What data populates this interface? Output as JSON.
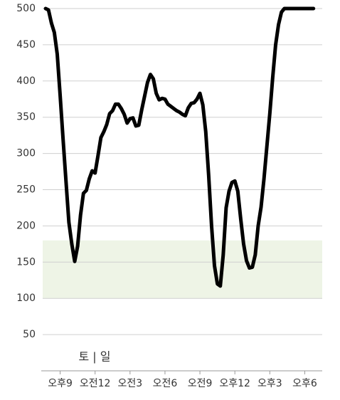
{
  "chart_data": {
    "type": "line",
    "annotation": "토 | 일",
    "x": [
      19.75,
      20,
      20.25,
      20.5,
      20.75,
      21,
      21.25,
      21.5,
      21.75,
      22,
      22.25,
      22.5,
      22.75,
      23,
      23.25,
      23.5,
      23.75,
      24,
      24.25,
      24.5,
      24.75,
      25,
      25.25,
      25.5,
      25.75,
      26,
      26.25,
      26.5,
      26.75,
      27,
      27.25,
      27.5,
      27.75,
      28,
      28.25,
      28.5,
      28.75,
      29,
      29.25,
      29.5,
      29.75,
      30,
      30.25,
      30.5,
      30.75,
      31,
      31.25,
      31.5,
      31.75,
      32,
      32.25,
      32.5,
      32.75,
      33,
      33.25,
      33.5,
      33.75,
      34,
      34.25,
      34.5,
      34.75,
      35,
      35.25,
      35.5,
      35.75,
      36,
      36.25,
      36.5,
      36.75,
      37,
      37.25,
      37.5,
      37.75,
      38,
      38.25,
      38.5,
      38.75,
      39,
      39.25,
      39.5,
      39.75,
      40,
      40.25,
      42.75
    ],
    "series": [
      {
        "color": "#000000",
        "values": [
          500,
          498,
          480,
          467,
          437,
          380,
          320,
          262,
          205,
          175,
          151,
          172,
          215,
          245,
          249,
          265,
          276,
          273,
          297,
          322,
          330,
          340,
          355,
          359,
          368,
          368,
          362,
          354,
          342,
          348,
          349,
          338,
          339,
          360,
          379,
          398,
          409,
          403,
          383,
          374,
          376,
          375,
          368,
          365,
          362,
          359,
          357,
          354,
          352,
          363,
          369,
          370,
          375,
          383,
          367,
          330,
          270,
          200,
          145,
          120,
          117,
          160,
          225,
          248,
          260,
          262,
          248,
          210,
          175,
          152,
          142,
          143,
          160,
          200,
          226,
          265,
          310,
          355,
          405,
          450,
          478,
          495,
          500,
          500
        ]
      }
    ],
    "target_band": {
      "range": [
        100,
        180
      ],
      "color": "#eef4e6"
    },
    "xlim": [
      19.5,
      43.5
    ],
    "xticks": [
      {
        "value": 21,
        "label": "오후9"
      },
      {
        "value": 24,
        "label": "오전12"
      },
      {
        "value": 27,
        "label": "오전3"
      },
      {
        "value": 30,
        "label": "오전6"
      },
      {
        "value": 33,
        "label": "오전9"
      },
      {
        "value": 36,
        "label": "오후12"
      },
      {
        "value": 39,
        "label": "오후3"
      },
      {
        "value": 42,
        "label": "오후6"
      }
    ],
    "ylim": [
      0,
      500
    ],
    "yticks": [
      50,
      100,
      150,
      200,
      250,
      300,
      350,
      400,
      450,
      500
    ],
    "grid": true
  }
}
